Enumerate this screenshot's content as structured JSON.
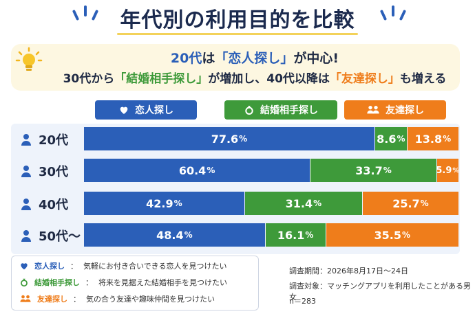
{
  "title": "年代別の利用目的を比較",
  "callout": {
    "line1": [
      {
        "text": "20代",
        "color": "blue"
      },
      {
        "text": "は",
        "color": "dark"
      },
      {
        "text": "「恋人探し」",
        "color": "blue"
      },
      {
        "text": "が中心!",
        "color": "dark"
      }
    ],
    "line2": [
      {
        "text": "30代から",
        "color": "dark"
      },
      {
        "text": "「結婚相手探し」",
        "color": "green"
      },
      {
        "text": "が増加し、40代以降は",
        "color": "dark"
      },
      {
        "text": "「友達探し」",
        "color": "orange"
      },
      {
        "text": "も増える",
        "color": "dark"
      }
    ]
  },
  "legend": [
    {
      "label": "恋人探し",
      "icon": "heart-icon",
      "color": "#2b5fb8"
    },
    {
      "label": "結婚相手探し",
      "icon": "ring-icon",
      "color": "#3e9a3a"
    },
    {
      "label": "友達探し",
      "icon": "people-icon",
      "color": "#ef7d1b"
    }
  ],
  "chart_data": {
    "type": "bar",
    "orientation": "horizontal",
    "stacked": true,
    "categories": [
      "20代",
      "30代",
      "40代",
      "50代〜"
    ],
    "series": [
      {
        "name": "恋人探し",
        "values": [
          77.6,
          60.4,
          42.9,
          48.4
        ],
        "color": "#2b5fb8"
      },
      {
        "name": "結婚相手探し",
        "values": [
          8.6,
          33.7,
          31.4,
          16.1
        ],
        "color": "#3e9a3a"
      },
      {
        "name": "友達探し",
        "values": [
          13.8,
          5.9,
          25.7,
          35.5
        ],
        "color": "#ef7d1b"
      }
    ],
    "unit": "%",
    "xlim": [
      0,
      100
    ]
  },
  "notes": [
    {
      "key": "恋人探し",
      "desc": "気軽にお付き合いできる恋人を見つけたい",
      "icon": "heart-icon",
      "color": "#2b5fb8"
    },
    {
      "key": "結婚相手探し",
      "desc": "将来を見据えた結婚相手を見つけたい",
      "icon": "ring-icon",
      "color": "#3e9a3a"
    },
    {
      "key": "友達探し",
      "desc": "気の合う友達や趣味仲間を見つけたい",
      "icon": "people-icon",
      "color": "#ef7d1b"
    }
  ],
  "survey": {
    "period": "調査期間：2026年8月17日～24日",
    "target": "調査対象：マッチングアプリを利用したことがある男女",
    "n": "n＝283"
  }
}
